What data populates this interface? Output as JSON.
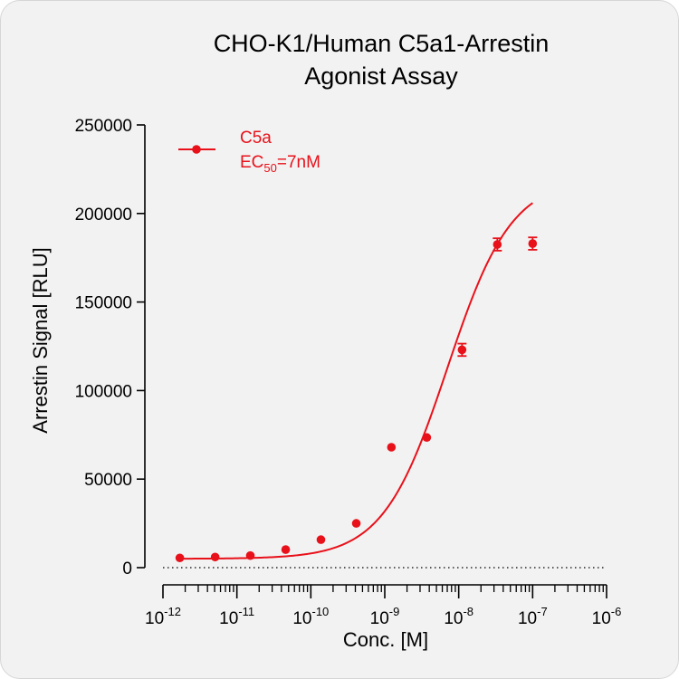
{
  "colors": {
    "series": "#e8111a",
    "axis": "#000000",
    "background": "#f2f2f2"
  },
  "chart_data": {
    "type": "scatter",
    "title_lines": [
      "CHO-K1/Human C5a1-Arrestin",
      "Agonist Assay"
    ],
    "xlabel": "Conc. [M]",
    "ylabel": "Arrestin Signal [RLU]",
    "x_scale": "log10",
    "xlim": [
      1e-12,
      1e-06
    ],
    "x_tick_labels": [
      {
        "base": "10",
        "exp": "-12"
      },
      {
        "base": "10",
        "exp": "-11"
      },
      {
        "base": "10",
        "exp": "-10"
      },
      {
        "base": "10",
        "exp": "-9"
      },
      {
        "base": "10",
        "exp": "-8"
      },
      {
        "base": "10",
        "exp": "-7"
      },
      {
        "base": "10",
        "exp": "-6"
      }
    ],
    "ylim": [
      0,
      250000
    ],
    "y_ticks": [
      0,
      50000,
      100000,
      150000,
      200000,
      250000
    ],
    "y_tick_labels": [
      "0",
      "50000",
      "100000",
      "150000",
      "200000",
      "250000"
    ],
    "zero_line": "dotted",
    "legend": {
      "placement": "top-left",
      "name": "C5a",
      "ec50_prefix": "EC",
      "ec50_sub": "50",
      "ec50_suffix": "=7nM"
    },
    "series": [
      {
        "name": "C5a",
        "points": [
          {
            "x": 1.69e-12,
            "y": 5500
          },
          {
            "x": 5.08e-12,
            "y": 6000
          },
          {
            "x": 1.52e-11,
            "y": 6800
          },
          {
            "x": 4.57e-11,
            "y": 10200
          },
          {
            "x": 1.37e-10,
            "y": 15800
          },
          {
            "x": 4.12e-10,
            "y": 25000
          },
          {
            "x": 1.23e-09,
            "y": 68000
          },
          {
            "x": 3.7e-09,
            "y": 73500
          },
          {
            "x": 1.11e-08,
            "y": 123000,
            "err": 3500
          },
          {
            "x": 3.33e-08,
            "y": 182500,
            "err": 3500
          },
          {
            "x": 1e-07,
            "y": 183000,
            "err": 3500
          }
        ],
        "fit": {
          "model": "4PL",
          "bottom": 5000,
          "top": 220000,
          "ec50": 7e-09,
          "hill": 1.0
        }
      }
    ]
  }
}
